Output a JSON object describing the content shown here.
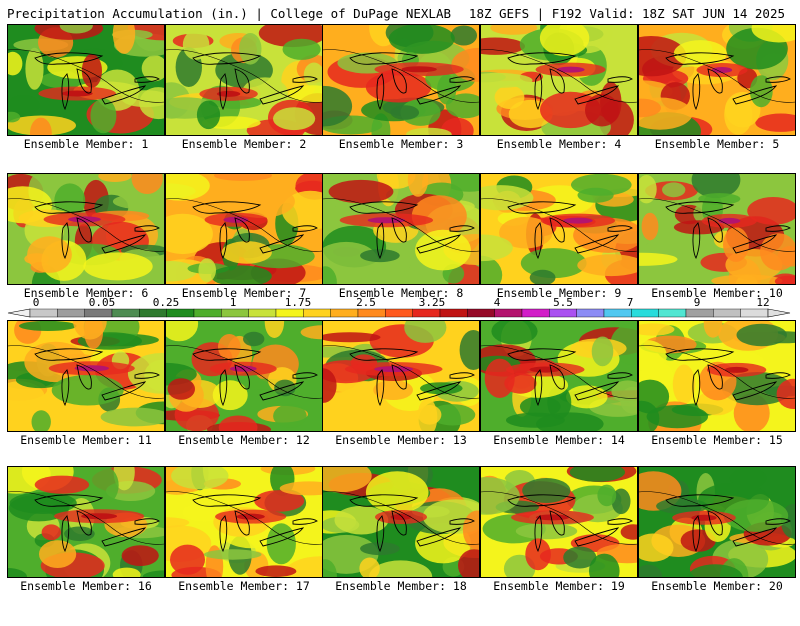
{
  "header": {
    "title": "Precipitation Accumulation (in.) | College of DuPage NEXLAB",
    "run_info": "18Z GEFS | F192 Valid: 18Z SAT JUN 14 2025"
  },
  "legend": {
    "ticks": [
      "0",
      "0.05",
      "0.25",
      "1",
      "1.75",
      "2.5",
      "3.25",
      "4",
      "5.5",
      "7",
      "9",
      "12"
    ],
    "colors": [
      "#c8c8c8",
      "#9e9e9e",
      "#7a7a7a",
      "#4e8c52",
      "#2e7a2e",
      "#1f8c1f",
      "#4fae2c",
      "#8cc63e",
      "#c8e23a",
      "#f4f41c",
      "#ffd21e",
      "#ffae1e",
      "#ff8a1e",
      "#ff5a1e",
      "#e6281e",
      "#c01414",
      "#960a28",
      "#b4146e",
      "#d21ec8",
      "#aa50f0",
      "#8c8cf5",
      "#50c8f0",
      "#28dcdc",
      "#50e6d2",
      "#a0a0a0",
      "#c0c0c0",
      "#dcdcdc"
    ]
  },
  "panels": [
    {
      "caption": "Ensemble Member: 1"
    },
    {
      "caption": "Ensemble Member: 2"
    },
    {
      "caption": "Ensemble Member: 3"
    },
    {
      "caption": "Ensemble Member: 4"
    },
    {
      "caption": "Ensemble Member: 5"
    },
    {
      "caption": "Ensemble Member: 6"
    },
    {
      "caption": "Ensemble Member: 7"
    },
    {
      "caption": "Ensemble Member: 8"
    },
    {
      "caption": "Ensemble Member: 9"
    },
    {
      "caption": "Ensemble Member: 10"
    },
    {
      "caption": "Ensemble Member: 11"
    },
    {
      "caption": "Ensemble Member: 12"
    },
    {
      "caption": "Ensemble Member: 13"
    },
    {
      "caption": "Ensemble Member: 14"
    },
    {
      "caption": "Ensemble Member: 15"
    },
    {
      "caption": "Ensemble Member: 16"
    },
    {
      "caption": "Ensemble Member: 17"
    },
    {
      "caption": "Ensemble Member: 18"
    },
    {
      "caption": "Ensemble Member: 19"
    },
    {
      "caption": "Ensemble Member: 20"
    }
  ]
}
